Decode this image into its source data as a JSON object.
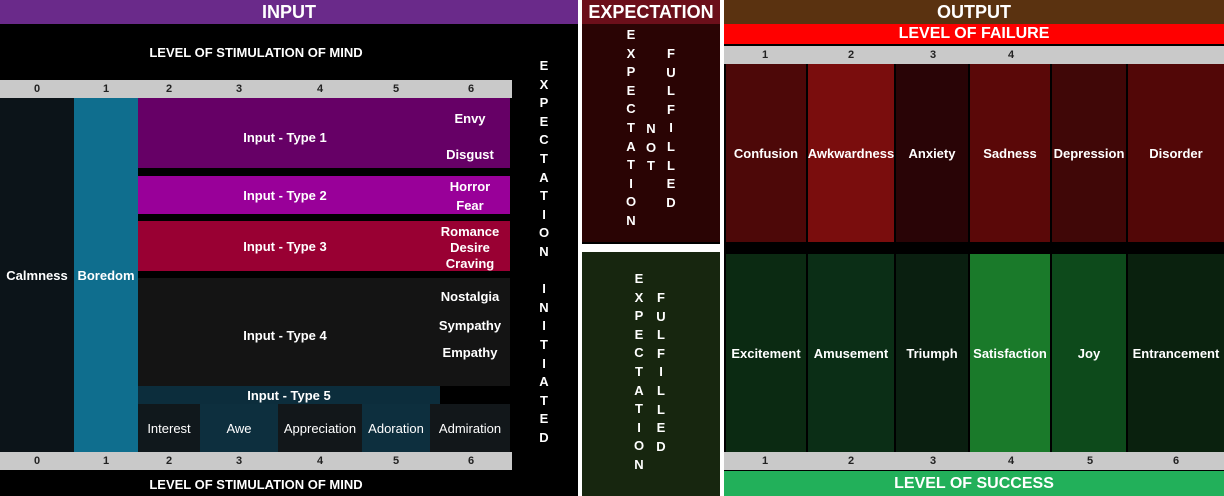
{
  "input": {
    "title": "INPUT",
    "stimulation_label_top": "LEVEL OF STIMULATION OF MIND",
    "stimulation_label_bottom": "LEVEL OF STIMULATION OF MIND",
    "levels": [
      "0",
      "1",
      "2",
      "3",
      "4",
      "5",
      "6"
    ],
    "calmness": "Calmness",
    "boredom": "Boredom",
    "types": [
      {
        "label": "Input - Type 1",
        "emotions": [
          "Envy",
          "Disgust"
        ]
      },
      {
        "label": "Input - Type 2",
        "emotions": [
          "Horror",
          "Fear"
        ]
      },
      {
        "label": "Input - Type 3",
        "emotions": [
          "Romance",
          "Desire",
          "Craving"
        ]
      },
      {
        "label": "Input - Type 4",
        "emotions": [
          "Nostalgia",
          "Sympathy",
          "Empathy"
        ]
      },
      {
        "label": "Input - Type 5",
        "emotions": [
          "Interest",
          "Awe",
          "Appreciation",
          "Adoration",
          "Admiration"
        ]
      }
    ],
    "expectation_initiated": [
      "E",
      "X",
      "P",
      "E",
      "C",
      "T",
      "A",
      "T",
      "I",
      "O",
      "N",
      "",
      "I",
      "N",
      "I",
      "T",
      "I",
      "A",
      "T",
      "E",
      "D"
    ]
  },
  "expectation": {
    "title": "EXPECTATION",
    "not_fulfilled_col1": [
      "E",
      "X",
      "P",
      "E",
      "C",
      "T",
      "A",
      "T",
      "I",
      "O",
      "N"
    ],
    "not_fulfilled_col2": [
      "N",
      "O",
      "T"
    ],
    "not_fulfilled_col3": [
      "F",
      "U",
      "L",
      "F",
      "I",
      "L",
      "L",
      "E",
      "D"
    ],
    "fulfilled_col1": [
      "E",
      "X",
      "P",
      "E",
      "C",
      "T",
      "A",
      "T",
      "I",
      "O",
      "N"
    ],
    "fulfilled_col2": [
      "F",
      "U",
      "L",
      "F",
      "I",
      "L",
      "L",
      "E",
      "D"
    ]
  },
  "output": {
    "title": "OUTPUT",
    "failure_label": "LEVEL OF FAILURE",
    "success_label": "LEVEL OF SUCCESS",
    "failure_levels": [
      "1",
      "2",
      "3",
      "4"
    ],
    "success_levels": [
      "1",
      "2",
      "3",
      "4",
      "5",
      "6"
    ],
    "failure_emotions": [
      "Confusion",
      "Awkwardness",
      "Anxiety",
      "Sadness",
      "Depression",
      "Disorder"
    ],
    "success_emotions": [
      "Excitement",
      "Amusement",
      "Triumph",
      "Satisfaction",
      "Joy",
      "Entrancement"
    ]
  },
  "colors": {
    "input_header": "#6a2a8a",
    "expectation_header": "#6b0f1a",
    "output_header": "#5a3210",
    "failure_bar": "#ff0000",
    "success_bar": "#22b05a",
    "calmness": "#0c1419",
    "boredom": "#0f6e8e",
    "type1": "#660066",
    "type2": "#990099",
    "type3": "#990033",
    "type4": "#141414",
    "type5": "#0c2d3c"
  }
}
